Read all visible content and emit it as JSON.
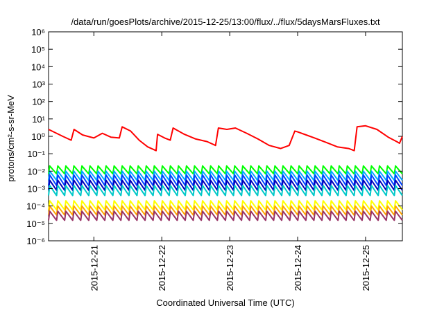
{
  "chart_data": {
    "type": "line",
    "title": "/data/run/goesPlots/archive/2015-12-25/13:00/flux/../flux/5daysMarsFluxes.txt",
    "xlabel": "Coordinated Universal Time (UTC)",
    "ylabel": "protons/cm²-s-sr-MeV",
    "yscale": "log",
    "ylim": [
      1e-06,
      1000000.0
    ],
    "y_ticks": [
      "10⁻⁶",
      "10⁻⁵",
      "10⁻⁴",
      "10⁻³",
      "10⁻²",
      "10⁻¹",
      "10⁰",
      "10¹",
      "10²",
      "10³",
      "10⁴",
      "10⁵",
      "10⁶"
    ],
    "x_ticks": [
      "2015-12-21",
      "2015-12-22",
      "2015-12-23",
      "2015-12-24",
      "2015-12-25"
    ],
    "xlim": [
      "2015-12-20 08:00",
      "2015-12-25 13:00"
    ],
    "grid": false,
    "legend": "none",
    "series": [
      {
        "color": "#ff0000",
        "width": 2,
        "x": [
          "2015-12-20 08:00",
          "2015-12-20 13:00",
          "2015-12-20 16:00",
          "2015-12-20 17:00",
          "2015-12-20 20:00",
          "2015-12-21 00:00",
          "2015-12-21 03:00",
          "2015-12-21 06:00",
          "2015-12-21 09:00",
          "2015-12-21 10:00",
          "2015-12-21 13:00",
          "2015-12-21 16:00",
          "2015-12-21 19:00",
          "2015-12-21 22:00",
          "2015-12-21 22:30",
          "2015-12-22 01:00",
          "2015-12-22 03:00",
          "2015-12-22 04:00",
          "2015-12-22 08:00",
          "2015-12-22 12:00",
          "2015-12-22 16:00",
          "2015-12-22 19:00",
          "2015-12-22 20:00",
          "2015-12-22 23:00",
          "2015-12-23 02:00",
          "2015-12-23 06:00",
          "2015-12-23 10:00",
          "2015-12-23 14:00",
          "2015-12-23 18:00",
          "2015-12-23 21:00",
          "2015-12-23 23:00",
          "2015-12-24 00:00",
          "2015-12-24 03:00",
          "2015-12-24 06:00",
          "2015-12-24 10:00",
          "2015-12-24 14:00",
          "2015-12-24 18:00",
          "2015-12-24 20:00",
          "2015-12-24 21:00",
          "2015-12-25 00:00",
          "2015-12-25 04:00",
          "2015-12-25 08:00",
          "2015-12-25 11:00",
          "2015-12-25 12:00",
          "2015-12-25 13:00"
        ],
        "y": [
          2.5,
          1.0,
          0.6,
          2.5,
          1.2,
          0.8,
          1.5,
          0.9,
          0.8,
          3.5,
          2.0,
          0.6,
          0.25,
          0.15,
          1.3,
          0.8,
          0.6,
          3.0,
          1.3,
          0.7,
          0.5,
          0.3,
          3.0,
          2.5,
          3.0,
          1.5,
          0.7,
          0.3,
          0.2,
          0.3,
          2.0,
          1.8,
          1.2,
          0.8,
          0.45,
          0.25,
          0.2,
          0.15,
          3.5,
          4.0,
          2.5,
          0.9,
          0.5,
          0.4,
          1.0
        ]
      },
      {
        "color": "#00ff00",
        "width": 2,
        "teeth": 44,
        "peak": 0.02,
        "trough": 0.007,
        "x": [],
        "y": []
      },
      {
        "color": "#00aaff",
        "width": 2,
        "teeth": 44,
        "peak": 0.01,
        "trough": 0.003,
        "x": [],
        "y": []
      },
      {
        "color": "#0044ff",
        "width": 2,
        "teeth": 44,
        "peak": 0.006,
        "trough": 0.0015,
        "x": [],
        "y": []
      },
      {
        "color": "#0000bb",
        "width": 2,
        "teeth": 44,
        "peak": 0.003,
        "trough": 0.0008,
        "x": [],
        "y": []
      },
      {
        "color": "#00c8c8",
        "width": 2,
        "teeth": 44,
        "peak": 0.0015,
        "trough": 0.0004,
        "x": [],
        "y": []
      },
      {
        "color": "#ffff00",
        "width": 2,
        "teeth": 44,
        "peak": 0.0002,
        "trough": 6e-05,
        "x": [],
        "y": []
      },
      {
        "color": "#ffa500",
        "width": 2,
        "teeth": 44,
        "peak": 0.0001,
        "trough": 3e-05,
        "x": [],
        "y": []
      },
      {
        "color": "#993366",
        "width": 2,
        "teeth": 44,
        "peak": 5e-05,
        "trough": 1.5e-05,
        "x": [],
        "y": []
      }
    ]
  }
}
